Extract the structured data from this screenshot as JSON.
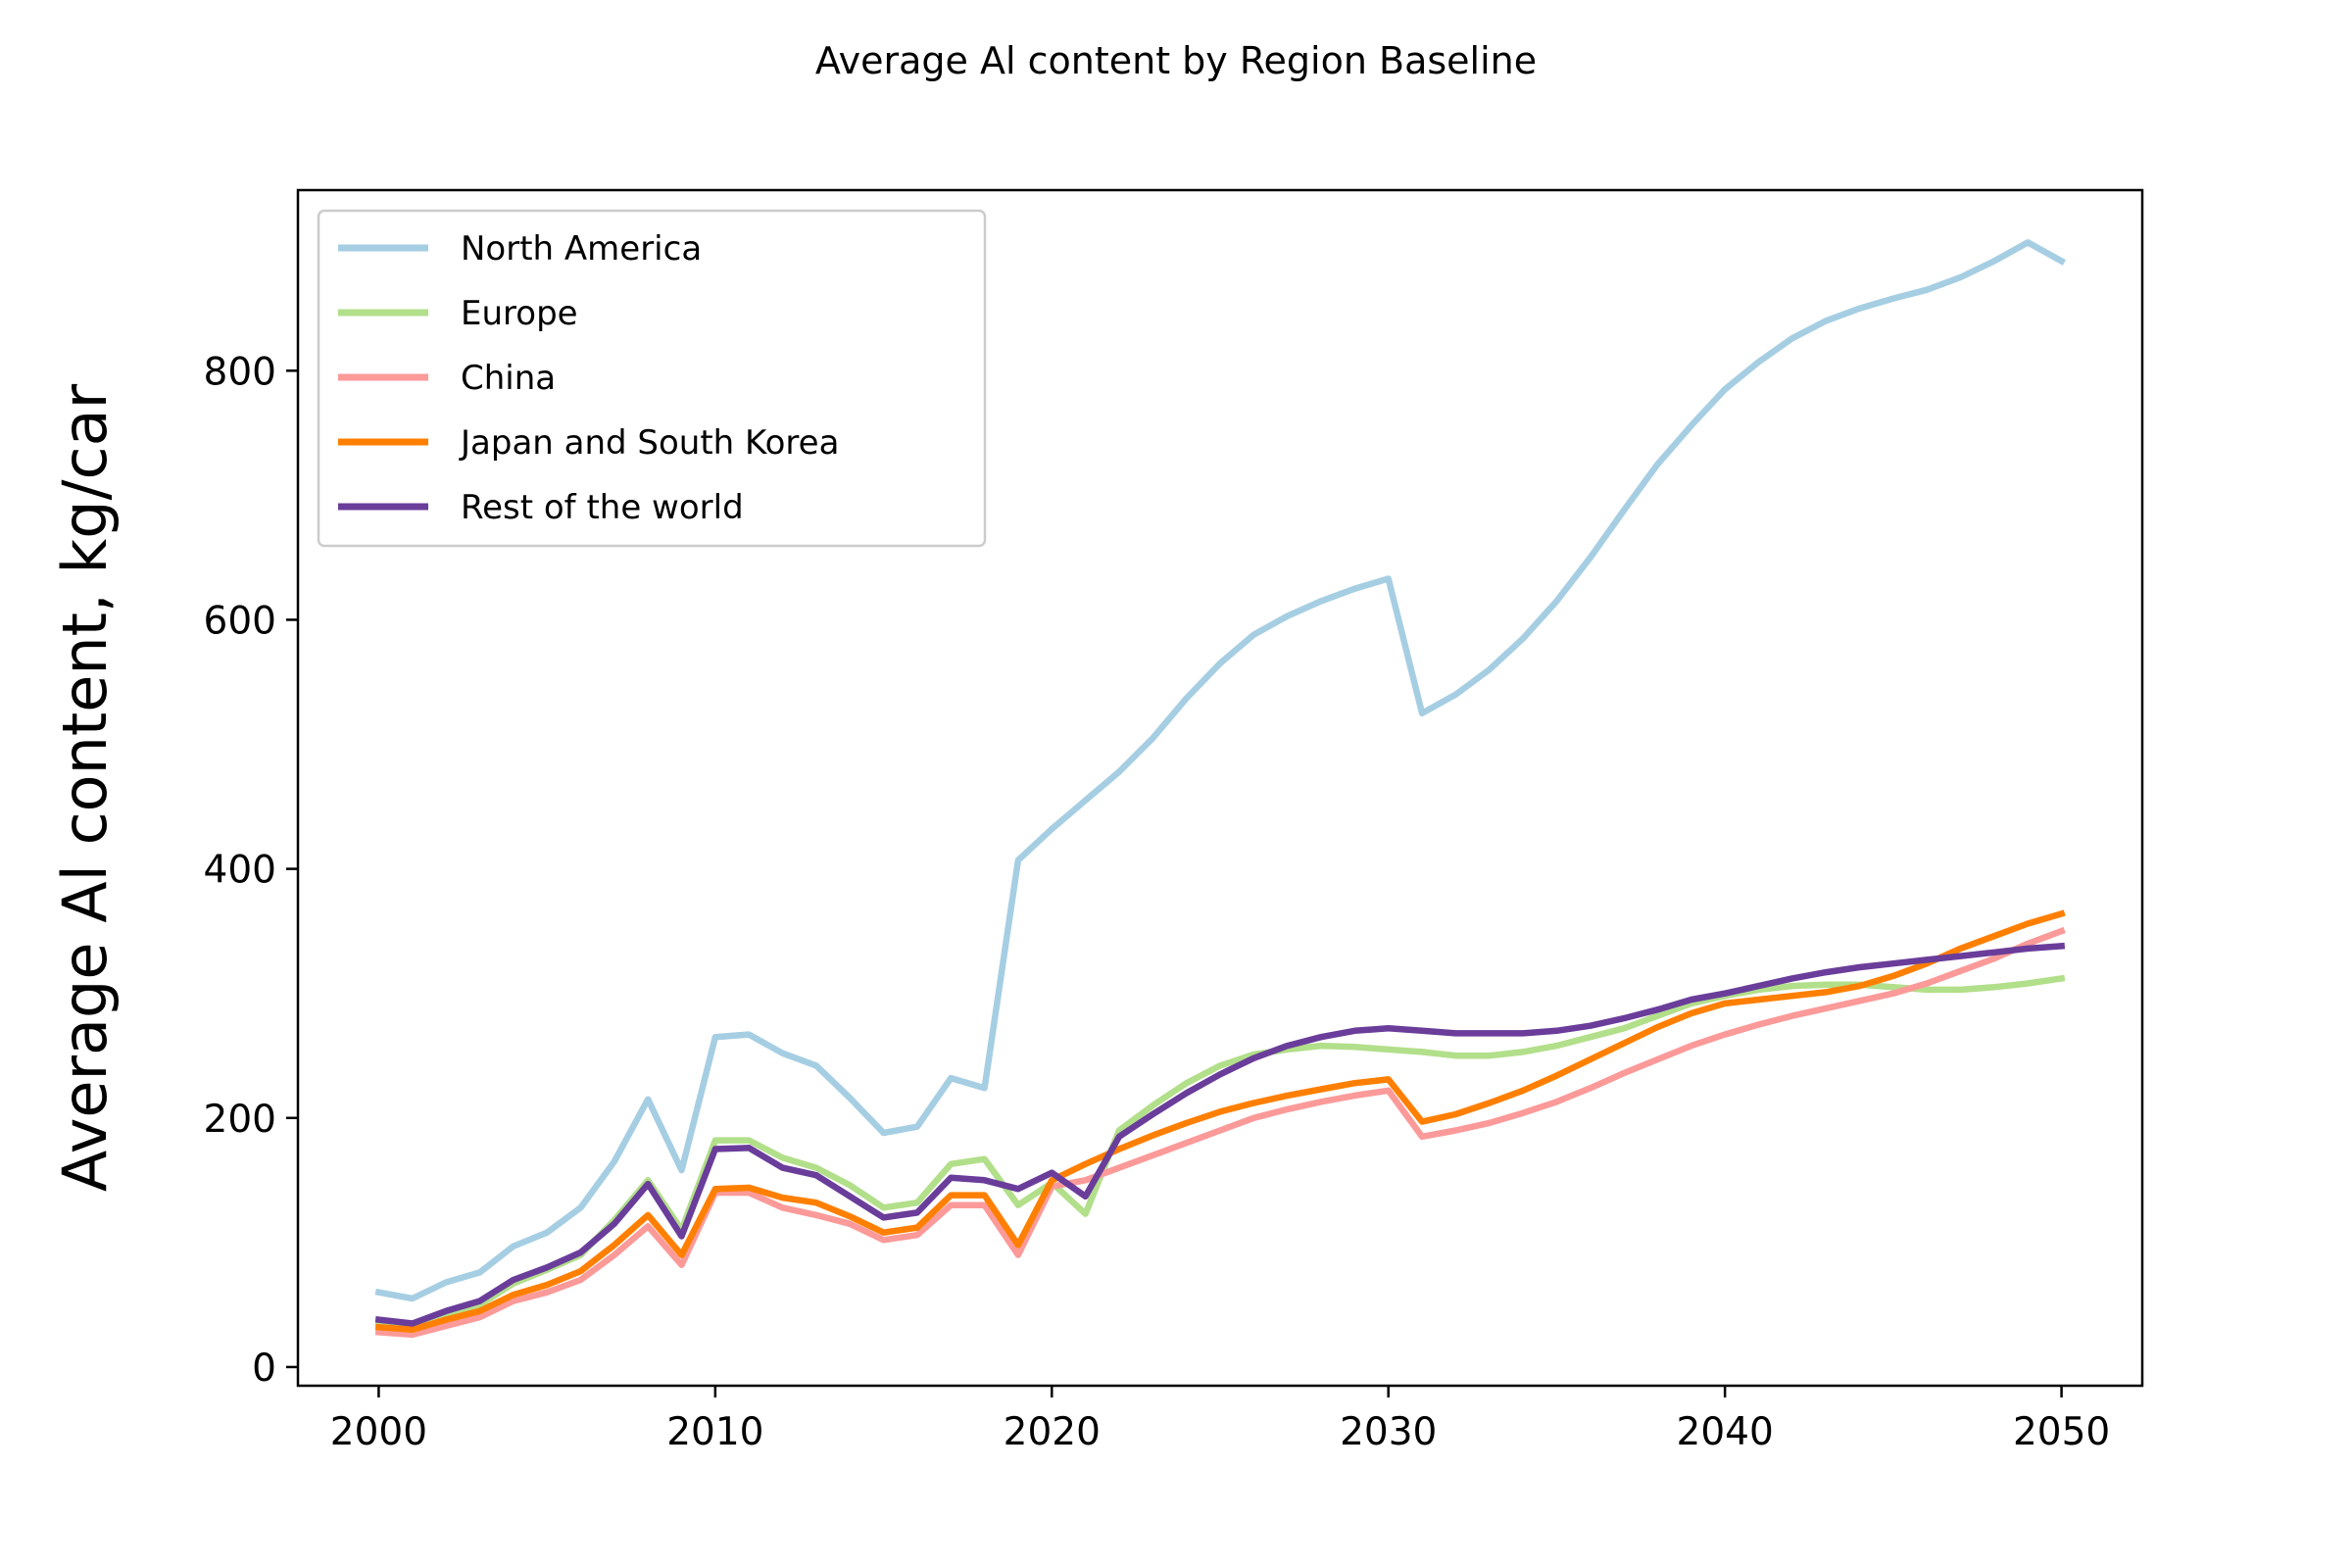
{
  "chart_data": {
    "type": "line",
    "title": "Average Al content by Region Baseline",
    "ylabel": "Average Al content, kg/car",
    "xlabel": "",
    "xlim": [
      1997.6,
      2052.4
    ],
    "ylim": [
      -15,
      945
    ],
    "xticks": [
      2000,
      2010,
      2020,
      2030,
      2040,
      2050
    ],
    "yticks": [
      0,
      200,
      400,
      600,
      800
    ],
    "legend_position": "top-left",
    "grid": false,
    "x": [
      2000,
      2001,
      2002,
      2003,
      2004,
      2005,
      2006,
      2007,
      2008,
      2009,
      2010,
      2011,
      2012,
      2013,
      2014,
      2015,
      2016,
      2017,
      2018,
      2019,
      2020,
      2021,
      2022,
      2023,
      2024,
      2025,
      2026,
      2027,
      2028,
      2029,
      2030,
      2031,
      2032,
      2033,
      2034,
      2035,
      2036,
      2037,
      2038,
      2039,
      2040,
      2041,
      2042,
      2043,
      2044,
      2045,
      2046,
      2047,
      2048,
      2049,
      2050
    ],
    "series": [
      {
        "name": "North America",
        "color": "#a6cee3",
        "values": [
          60,
          55,
          68,
          76,
          97,
          108,
          128,
          165,
          215,
          158,
          265,
          267,
          252,
          242,
          216,
          188,
          193,
          232,
          224,
          407,
          432,
          455,
          478,
          505,
          537,
          565,
          588,
          603,
          615,
          625,
          633,
          525,
          540,
          560,
          585,
          615,
          650,
          688,
          725,
          756,
          785,
          807,
          826,
          840,
          850,
          858,
          865,
          875,
          888,
          903,
          888
        ]
      },
      {
        "name": "Europe",
        "color": "#b2df8a",
        "values": [
          35,
          32,
          42,
          50,
          67,
          78,
          90,
          118,
          150,
          110,
          182,
          182,
          168,
          160,
          146,
          128,
          132,
          163,
          167,
          130,
          148,
          123,
          190,
          210,
          228,
          242,
          251,
          255,
          258,
          257,
          255,
          253,
          250,
          250,
          253,
          258,
          265,
          272,
          282,
          292,
          298,
          303,
          306,
          307,
          307,
          305,
          303,
          303,
          305,
          308,
          312
        ]
      },
      {
        "name": "China",
        "color": "#fb9a99",
        "values": [
          28,
          26,
          33,
          40,
          53,
          60,
          70,
          90,
          113,
          82,
          140,
          140,
          128,
          122,
          115,
          102,
          106,
          130,
          130,
          90,
          145,
          150,
          160,
          170,
          180,
          190,
          200,
          207,
          213,
          218,
          222,
          185,
          190,
          196,
          204,
          213,
          224,
          236,
          247,
          258,
          267,
          275,
          282,
          288,
          294,
          300,
          308,
          318,
          328,
          340,
          350
        ]
      },
      {
        "name": "Japan and South Korea",
        "color": "#ff7f00",
        "values": [
          32,
          30,
          38,
          45,
          58,
          66,
          77,
          98,
          122,
          90,
          143,
          144,
          136,
          132,
          121,
          108,
          112,
          138,
          138,
          98,
          150,
          163,
          175,
          186,
          196,
          205,
          212,
          218,
          223,
          228,
          231,
          197,
          203,
          212,
          222,
          234,
          247,
          260,
          273,
          284,
          292,
          295,
          298,
          301,
          306,
          314,
          324,
          336,
          346,
          356,
          364
        ]
      },
      {
        "name": "Rest of the world",
        "color": "#6a3d9a",
        "values": [
          38,
          35,
          45,
          53,
          70,
          80,
          92,
          115,
          147,
          105,
          175,
          176,
          160,
          154,
          137,
          120,
          124,
          152,
          150,
          143,
          156,
          137,
          185,
          203,
          220,
          235,
          248,
          258,
          265,
          270,
          272,
          270,
          268,
          268,
          268,
          270,
          274,
          280,
          287,
          295,
          300,
          306,
          312,
          317,
          321,
          324,
          327,
          330,
          333,
          336,
          338
        ]
      }
    ]
  }
}
